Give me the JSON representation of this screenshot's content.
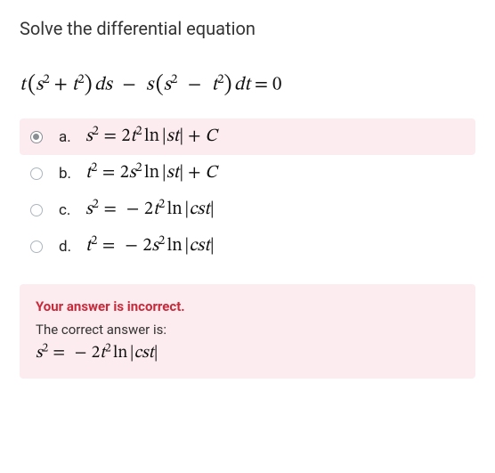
{
  "prompt": "Solve the differential equation",
  "equation_html": "<span class='ital'>t</span><span class='thin'></span><span class='big-paren'>(</span><span class='ital'>s</span><sup>2</sup> + <span class='ital'>t</span><sup>2</sup><span class='big-paren'>)</span><span class='thin'></span><span class='ital'>ds</span><span class='wide'></span>&minus;<span class='wide'></span><span class='ital'>s</span><span class='thin'></span><span class='big-paren'>(</span><span class='ital'>s</span><sup>2</sup><span class='wide'></span>&minus;<span class='wide'></span><span class='ital'>t</span><sup>2</sup><span class='big-paren'>)</span><span class='thin'></span><span class='ital'>dt</span> = 0",
  "options": [
    {
      "letter": "a.",
      "math_html": "<span class='ital'>s</span><sup>2</sup><span class='med'></span>=<span class='med'></span>2<span class='ital'>t</span><sup>2</sup><span class='thin'></span>ln<span class='thin'></span>|<span class='ital'>st</span>| + <span class='ital'>C</span>",
      "selected": true
    },
    {
      "letter": "b.",
      "math_html": "<span class='ital'>t</span><sup>2</sup><span class='med'></span>=<span class='med'></span>2<span class='ital'>s</span><sup>2</sup><span class='thin'></span>ln<span class='thin'></span>|<span class='ital'>st</span>| + <span class='ital'>C</span>",
      "selected": false
    },
    {
      "letter": "c.",
      "math_html": "<span class='ital'>s</span><sup>2</sup><span class='med'></span>=<span class='med'></span><span class='med'></span>&minus;<span class='med'></span>2<span class='ital'>t</span><sup>2</sup><span class='thin'></span>ln<span class='thin'></span>|<span class='ital'>cst</span>|",
      "selected": false
    },
    {
      "letter": "d.",
      "math_html": "<span class='ital'>t</span><sup>2</sup><span class='med'></span>=<span class='med'></span><span class='med'></span>&minus;<span class='med'></span>2<span class='ital'>s</span><sup>2</sup><span class='thin'></span>ln<span class='thin'></span>|<span class='ital'>cst</span>|",
      "selected": false
    }
  ],
  "feedback": {
    "title": "Your answer is incorrect.",
    "sub": "The correct answer is:",
    "answer_html": "<span class='ital'>s</span><sup>2</sup><span class='med'></span>=<span class='med'></span><span class='med'></span>&minus;<span class='med'></span>2<span class='ital'>t</span><sup>2</sup><span class='thin'></span>ln<span class='thin'></span>|<span class='ital'>cst</span>|"
  },
  "colors": {
    "error_bg": "#fdecef",
    "error_text": "#c92a3b",
    "body_text": "#212529"
  }
}
